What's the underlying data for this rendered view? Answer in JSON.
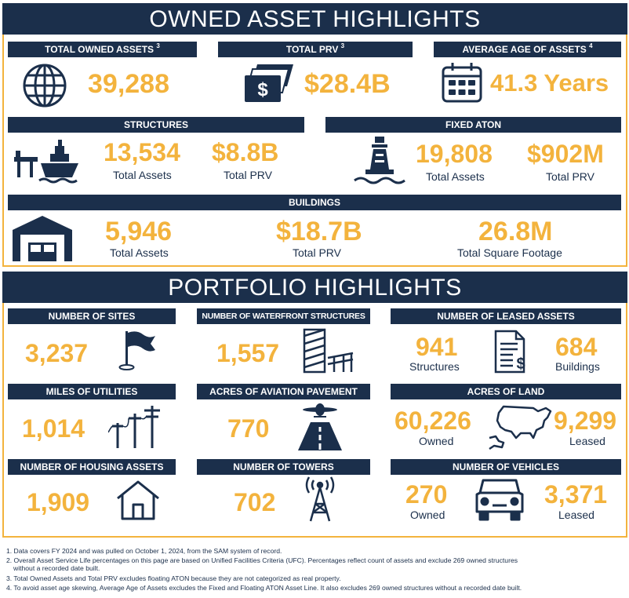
{
  "owned": {
    "title": "OWNED ASSET HIGHLIGHTS",
    "total_owned": {
      "label": "TOTAL OWNED ASSETS",
      "sup": "3",
      "value": "39,288",
      "icon": "globe-icon"
    },
    "total_prv": {
      "label": "TOTAL PRV",
      "sup": "3",
      "value": "$28.4B",
      "icon": "cash-icon"
    },
    "avg_age": {
      "label": "AVERAGE AGE OF ASSETS",
      "sup": "4",
      "value": "41.3 Years",
      "icon": "calendar-icon"
    },
    "structures": {
      "label": "STRUCTURES",
      "assets_value": "13,534",
      "assets_label": "Total Assets",
      "prv_value": "$8.8B",
      "prv_label": "Total PRV",
      "icon": "ship-pier-icon"
    },
    "fixed_aton": {
      "label": "FIXED ATON",
      "assets_value": "19,808",
      "assets_label": "Total Assets",
      "prv_value": "$902M",
      "prv_label": "Total PRV",
      "icon": "buoy-icon"
    },
    "buildings": {
      "label": "BUILDINGS",
      "assets_value": "5,946",
      "assets_label": "Total Assets",
      "prv_value": "$18.7B",
      "prv_label": "Total PRV",
      "sqft_value": "26.8M",
      "sqft_label": "Total Square Footage",
      "icon": "warehouse-icon"
    }
  },
  "portfolio": {
    "title": "PORTFOLIO HIGHLIGHTS",
    "sites": {
      "label": "NUMBER OF SITES",
      "value": "3,237",
      "icon": "flag-icon"
    },
    "waterfront": {
      "label": "NUMBER OF WATERFRONT STRUCTURES",
      "value": "1,557",
      "icon": "pier-piling-icon"
    },
    "leased": {
      "label": "NUMBER OF LEASED ASSETS",
      "structures_value": "941",
      "structures_label": "Structures",
      "buildings_value": "684",
      "buildings_label": "Buildings",
      "icon": "lease-document-icon"
    },
    "utilities": {
      "label": "MILES OF UTILITIES",
      "value": "1,014",
      "icon": "utility-pole-icon"
    },
    "aviation": {
      "label": "ACRES OF AVIATION PAVEMENT",
      "value": "770",
      "icon": "runway-plane-icon"
    },
    "land": {
      "label": "ACRES OF LAND",
      "owned_value": "60,226",
      "owned_label": "Owned",
      "leased_value": "9,299",
      "leased_label": "Leased",
      "icon": "us-map-icon"
    },
    "housing": {
      "label": "NUMBER OF HOUSING ASSETS",
      "value": "1,909",
      "icon": "house-icon"
    },
    "towers": {
      "label": "NUMBER OF TOWERS",
      "value": "702",
      "icon": "radio-tower-icon"
    },
    "vehicles": {
      "label": "NUMBER OF VEHICLES",
      "owned_value": "270",
      "owned_label": "Owned",
      "leased_value": "3,371",
      "leased_label": "Leased",
      "icon": "car-icon"
    }
  },
  "footnotes": [
    "1. Data covers FY 2024 and was pulled on October 1, 2024, from the SAM system of record.",
    "2. Overall Asset Service Life percentages on this page are based on Unified Facilities Criteria (UFC). Percentages reflect count of assets and exclude 269 owned structures",
    "without a recorded date built.",
    "3. Total Owned Assets and Total PRV excludes floating ATON because they are not categorized as real property.",
    "4. To avoid asset age skewing, Average Age of Assets excludes the Fixed and Floating ATON Asset Line. It also excludes 269 owned structures without a recorded date built."
  ],
  "colors": {
    "navy": "#1b2f4b",
    "gold": "#f3b33d"
  }
}
